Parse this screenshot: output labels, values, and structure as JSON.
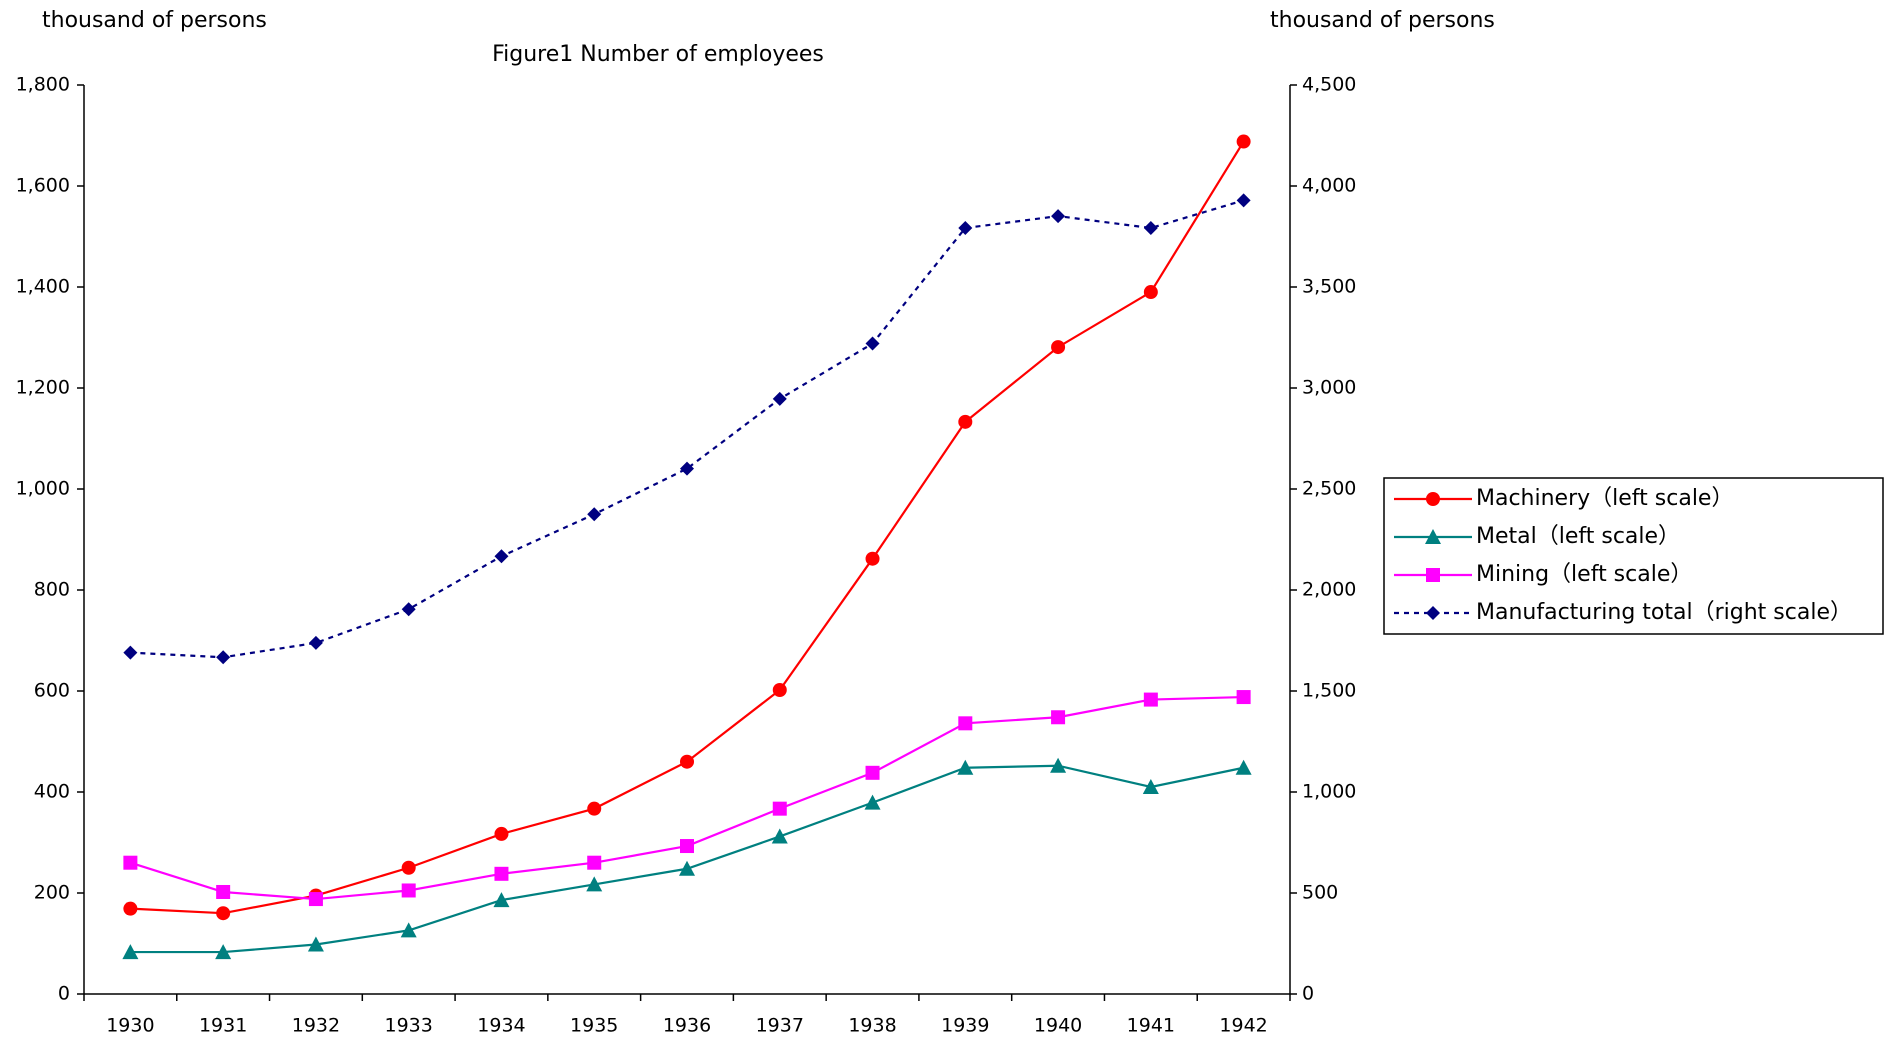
{
  "chart_data": {
    "type": "line",
    "title": "Figure1 Number of employees",
    "y_label": "thousand of persons",
    "y2_label": "thousand of persons",
    "categories": [
      "1930",
      "1931",
      "1932",
      "1933",
      "1934",
      "1935",
      "1936",
      "1937",
      "1938",
      "1939",
      "1940",
      "1941",
      "1942"
    ],
    "ylim": [
      0,
      1800
    ],
    "yticks": [
      0,
      200,
      400,
      600,
      800,
      {
        "value": 1000,
        "label": "1,000"
      },
      {
        "value": 1200,
        "label": "1,200"
      },
      {
        "value": 1400,
        "label": "1,400"
      },
      {
        "value": 1600,
        "label": "1,600"
      },
      {
        "value": 1800,
        "label": "1,800"
      }
    ],
    "y2lim": [
      0,
      4500
    ],
    "y2ticks": [
      0,
      500,
      {
        "value": 1000,
        "label": "1,000"
      },
      {
        "value": 1500,
        "label": "1,500"
      },
      {
        "value": 2000,
        "label": "2,000"
      },
      {
        "value": 2500,
        "label": "2,500"
      },
      {
        "value": 3000,
        "label": "3,000"
      },
      {
        "value": 3500,
        "label": "3,500"
      },
      {
        "value": 4000,
        "label": "4,000"
      },
      {
        "value": 4500,
        "label": "4,500"
      }
    ],
    "grid": false,
    "legend": "right",
    "series": [
      {
        "name": "Machinery（left scale）",
        "color": "#ff0000",
        "marker": "circle",
        "line_style": "solid",
        "values": [
          169,
          160,
          195,
          250,
          317,
          367,
          460,
          602,
          862,
          1133,
          1281,
          1390,
          1688
        ]
      },
      {
        "name": "Metal（left scale）",
        "color": "#008080",
        "marker": "triangle",
        "line_style": "solid",
        "values": [
          83,
          83,
          98,
          126,
          186,
          217,
          248,
          312,
          379,
          448,
          452,
          410,
          448
        ]
      },
      {
        "name": "Mining（left scale）",
        "color": "#ff00ff",
        "marker": "square",
        "line_style": "solid",
        "values": [
          260,
          202,
          188,
          205,
          238,
          260,
          293,
          367,
          438,
          536,
          548,
          583,
          588
        ]
      },
      {
        "name": "Manufacturing total（right scale）",
        "color": "#000080",
        "marker": "diamond",
        "line_style": "dashed",
        "axis": "y2",
        "values": [
          1690,
          1667,
          1738,
          1905,
          2167,
          2375,
          2601,
          2946,
          3220,
          3792,
          3851,
          3792,
          3929
        ]
      }
    ]
  }
}
